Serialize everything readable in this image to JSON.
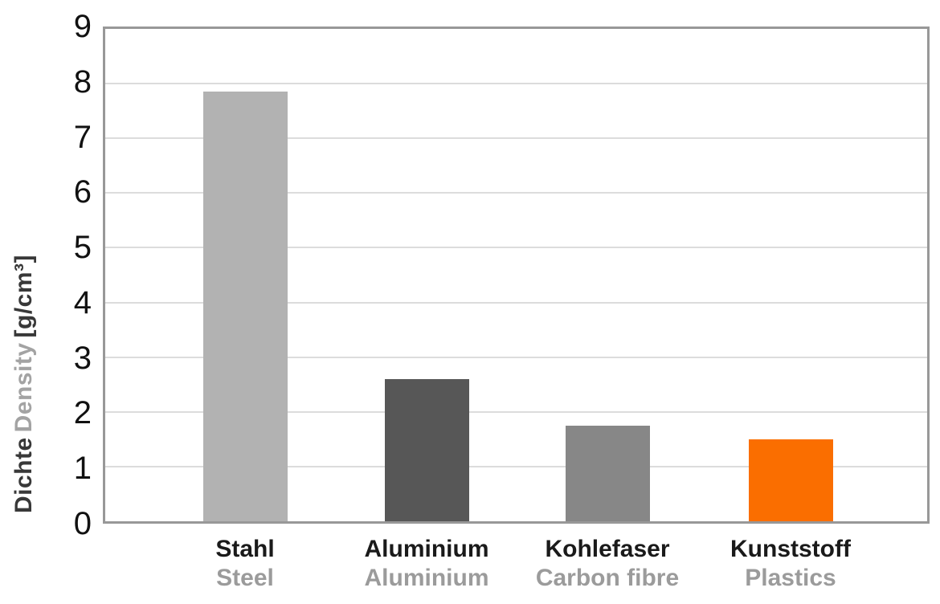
{
  "chart_data": {
    "type": "bar",
    "title": "",
    "xlabel": "",
    "ylabel": "Dichte Density [g/cm³]",
    "ylabel_parts": [
      {
        "text": "Dichte",
        "color": "#383838"
      },
      {
        "text": "Density",
        "color": "#A3A3A3"
      },
      {
        "text": "[g/cm³]",
        "color": "#383838"
      }
    ],
    "ylim": [
      0,
      9
    ],
    "yticks": [
      0,
      1,
      2,
      3,
      4,
      5,
      6,
      7,
      8,
      9
    ],
    "grid": true,
    "legend": false,
    "categories": [
      "Stahl",
      "Aluminium",
      "Kohlefaser",
      "Kunststoff"
    ],
    "categories_en": [
      "Steel",
      "Aluminium",
      "Carbon fibre",
      "Plastics"
    ],
    "values": [
      7.85,
      2.6,
      1.75,
      1.5
    ],
    "bar_colors": [
      "#B2B2B2",
      "#575757",
      "#878787",
      "#FA6E00"
    ]
  },
  "style": {
    "background": "#FFFFFF",
    "grid_color": "#DCDCDC",
    "plot_border_color": "#989898",
    "tick_color": "#111111",
    "label_de_color": "#1A1A1A",
    "label_en_color": "#9B9B9B"
  }
}
